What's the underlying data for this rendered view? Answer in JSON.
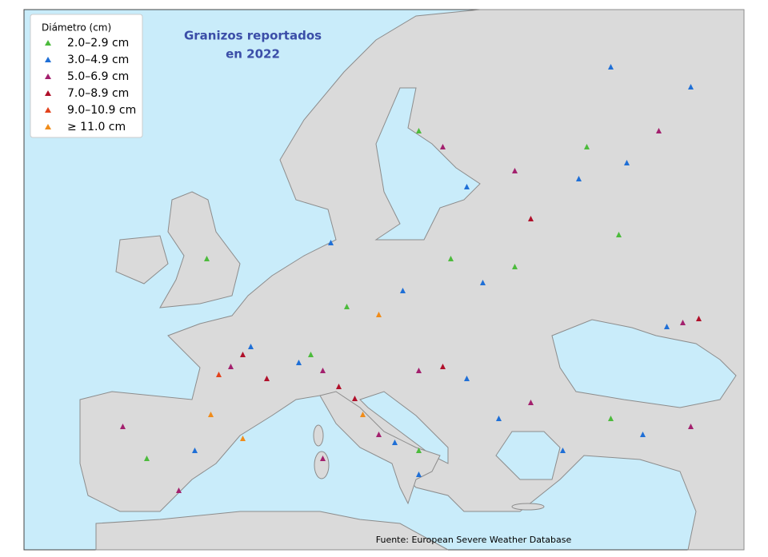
{
  "title": {
    "lines": [
      "Granizos reportados",
      "en 2022"
    ],
    "color": "#3b4ea8"
  },
  "legend": {
    "title": "Diámetro (cm)",
    "items": [
      {
        "label": "2.0–2.9 cm",
        "color": "#4cbb3c"
      },
      {
        "label": "3.0–4.9 cm",
        "color": "#1f6fd6"
      },
      {
        "label": "5.0–6.9 cm",
        "color": "#a3206e"
      },
      {
        "label": "7.0–8.9 cm",
        "color": "#b0102a"
      },
      {
        "label": "9.0–10.9 cm",
        "color": "#e2421c"
      },
      {
        "label": "≥ 11.0 cm",
        "color": "#f08c1a"
      }
    ]
  },
  "source": "Fuente: European Severe Weather Database"
}
